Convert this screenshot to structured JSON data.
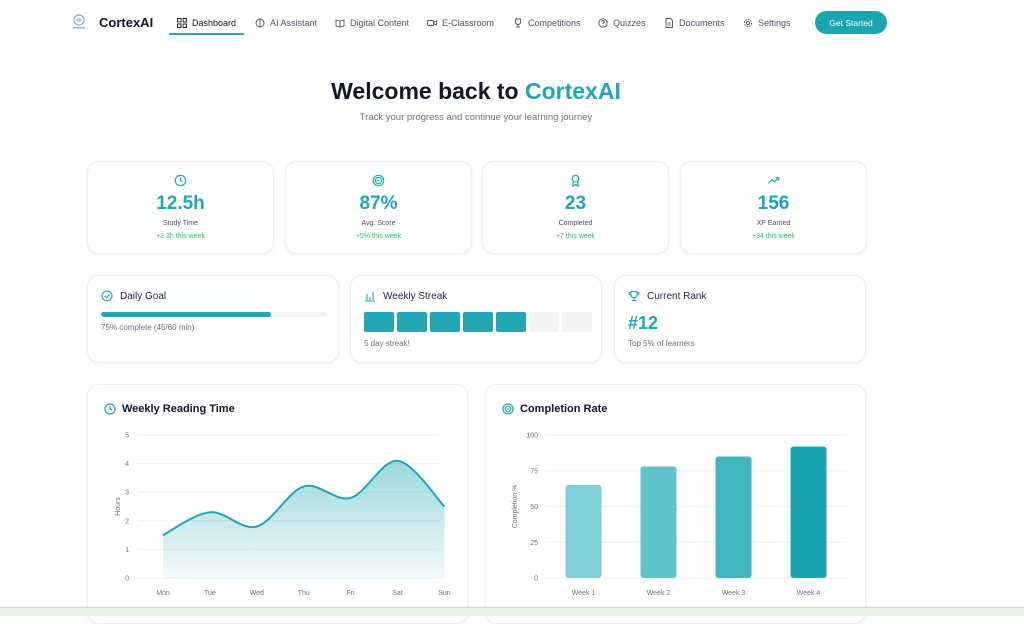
{
  "nav": {
    "brand": "CortexAI",
    "items": [
      {
        "label": "Dashboard",
        "icon": "grid-icon",
        "active": true
      },
      {
        "label": "AI Assistant",
        "icon": "brain-icon"
      },
      {
        "label": "Digital Content",
        "icon": "book-icon"
      },
      {
        "label": "E-Classroom",
        "icon": "video-icon"
      },
      {
        "label": "Competitions",
        "icon": "trophy-icon"
      },
      {
        "label": "Quizzes",
        "icon": "help-circle-icon"
      },
      {
        "label": "Documents",
        "icon": "file-icon"
      },
      {
        "label": "Settings",
        "icon": "gear-icon"
      }
    ],
    "cta": "Get Started"
  },
  "hero": {
    "title_prefix": "Welcome back to ",
    "title_brand": "CortexAI",
    "subtitle": "Track your progress and continue your learning journey"
  },
  "stats": [
    {
      "icon": "clock-icon",
      "value": "12.5h",
      "label": "Study Time",
      "change": "+2.3h this week"
    },
    {
      "icon": "target-icon",
      "value": "87%",
      "label": "Avg. Score",
      "change": "+5% this week"
    },
    {
      "icon": "award-icon",
      "value": "23",
      "label": "Completed",
      "change": "+7 this week"
    },
    {
      "icon": "trending-up-icon",
      "value": "156",
      "label": "XP Earned",
      "change": "+34 this week"
    }
  ],
  "daily_goal": {
    "title": "Daily Goal",
    "progress": 0.75,
    "note": "75% complete (45/60 min)"
  },
  "weekly_streak": {
    "title": "Weekly Streak",
    "days": [
      true,
      true,
      true,
      true,
      true,
      false,
      false
    ],
    "note": "5 day streak!"
  },
  "current_rank": {
    "title": "Current Rank",
    "rank": "#12",
    "note": "Top 5% of learners"
  },
  "colors": {
    "accent": "#22a6b3",
    "positive": "#22c55e"
  },
  "chart_data": [
    {
      "type": "area",
      "title": "Weekly Reading Time",
      "ylabel": "Hours",
      "categories": [
        "Mon",
        "Tue",
        "Wed",
        "Thu",
        "Fri",
        "Sat",
        "Sun"
      ],
      "values": [
        1.5,
        2.3,
        1.8,
        3.2,
        2.8,
        4.1,
        2.5
      ],
      "ylim": [
        0,
        5
      ],
      "yticks": [
        0,
        1,
        2,
        3,
        4,
        5
      ],
      "grid": true
    },
    {
      "type": "bar",
      "title": "Completion Rate",
      "ylabel": "Completion %",
      "categories": [
        "Week 1",
        "Week 2",
        "Week 3",
        "Week 4"
      ],
      "values": [
        65,
        78,
        85,
        92
      ],
      "ylim": [
        0,
        100
      ],
      "yticks": [
        0,
        25,
        50,
        75,
        100
      ],
      "grid": true
    }
  ]
}
